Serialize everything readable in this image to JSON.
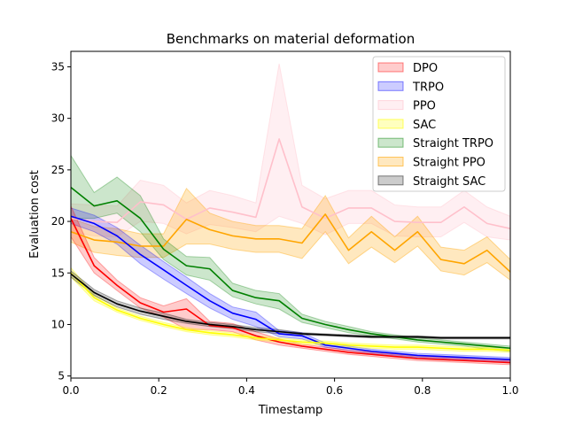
{
  "chart_data": {
    "type": "line",
    "title": "Benchmarks on material deformation",
    "xlabel": "Timestamp",
    "ylabel": "Evaluation cost",
    "xlim": [
      0,
      1
    ],
    "ylim": [
      4.8,
      36.5
    ],
    "xticks": [
      0,
      0.2,
      0.4,
      0.6,
      0.8,
      1.0
    ],
    "xtick_labels": [
      "0.0",
      "0.2",
      "0.4",
      "0.6",
      "0.8",
      "1.0"
    ],
    "yticks": [
      5,
      10,
      15,
      20,
      25,
      30,
      35
    ],
    "ytick_labels": [
      "5",
      "10",
      "15",
      "20",
      "25",
      "30",
      "35"
    ],
    "legend_position": "top-right",
    "x": [
      0,
      0.053,
      0.105,
      0.158,
      0.211,
      0.263,
      0.316,
      0.368,
      0.421,
      0.474,
      0.526,
      0.579,
      0.632,
      0.684,
      0.737,
      0.789,
      0.842,
      0.895,
      0.947,
      1.0
    ],
    "series": [
      {
        "name": "PPO",
        "color": "#ffc0cb",
        "fill": "#ffc0cb",
        "fill_opacity": 0.25,
        "values": [
          20.3,
          20.0,
          19.9,
          21.9,
          21.6,
          20.2,
          21.3,
          20.9,
          20.4,
          28.0,
          21.4,
          20.3,
          21.3,
          21.3,
          20.0,
          19.9,
          19.9,
          21.4,
          19.8,
          19.3
        ],
        "lower": [
          19.0,
          18.6,
          18.5,
          20.0,
          19.8,
          18.8,
          19.7,
          19.4,
          19.0,
          20.5,
          19.8,
          18.7,
          19.8,
          19.8,
          18.6,
          18.5,
          18.5,
          19.9,
          18.5,
          18.2
        ],
        "upper": [
          21.7,
          21.6,
          21.5,
          24.0,
          23.5,
          21.8,
          23.0,
          22.5,
          21.8,
          35.3,
          23.5,
          22.2,
          23.0,
          23.0,
          21.6,
          21.4,
          21.4,
          23.0,
          21.4,
          20.5
        ]
      },
      {
        "name": "Straight PPO",
        "color": "#ffa500",
        "fill": "#ffa500",
        "fill_opacity": 0.25,
        "values": [
          19.0,
          18.2,
          18.0,
          17.6,
          17.6,
          20.2,
          19.2,
          18.6,
          18.3,
          18.3,
          17.9,
          20.7,
          17.2,
          19.0,
          17.2,
          19.0,
          16.3,
          15.9,
          17.2,
          15.1
        ],
        "lower": [
          18.0,
          17.0,
          16.7,
          16.5,
          16.5,
          17.8,
          17.8,
          17.3,
          17.0,
          17.0,
          16.4,
          19.0,
          15.9,
          17.5,
          16.0,
          17.6,
          15.2,
          14.8,
          16.0,
          14.3
        ],
        "upper": [
          20.3,
          19.5,
          19.3,
          18.8,
          18.8,
          23.2,
          20.8,
          20.0,
          19.6,
          19.6,
          19.3,
          22.5,
          18.4,
          20.5,
          18.5,
          20.5,
          17.5,
          17.2,
          18.5,
          16.3
        ]
      },
      {
        "name": "Straight TRPO",
        "color": "#008000",
        "fill": "#008000",
        "fill_opacity": 0.2,
        "values": [
          23.3,
          21.5,
          22.0,
          20.3,
          17.3,
          15.7,
          15.4,
          13.3,
          12.6,
          12.3,
          10.6,
          10.0,
          9.5,
          9.1,
          8.8,
          8.5,
          8.3,
          8.1,
          7.9,
          7.7
        ],
        "lower": [
          20.3,
          20.3,
          20.8,
          19.0,
          16.3,
          14.8,
          14.3,
          12.7,
          12.0,
          11.5,
          10.2,
          9.7,
          9.2,
          8.9,
          8.6,
          8.3,
          8.1,
          7.9,
          7.6,
          7.4
        ],
        "upper": [
          26.4,
          22.8,
          24.3,
          22.5,
          18.3,
          16.6,
          16.5,
          14.0,
          13.3,
          13.0,
          11.0,
          10.3,
          9.8,
          9.3,
          9.0,
          8.7,
          8.5,
          8.3,
          8.1,
          7.9
        ]
      },
      {
        "name": "TRPO",
        "color": "#0000ff",
        "fill": "#0000ff",
        "fill_opacity": 0.2,
        "values": [
          20.5,
          19.8,
          18.6,
          16.8,
          15.3,
          13.8,
          12.3,
          11.1,
          10.5,
          9.1,
          8.9,
          8.0,
          7.7,
          7.4,
          7.2,
          7.0,
          6.9,
          6.8,
          6.7,
          6.6
        ],
        "lower": [
          19.8,
          19.0,
          17.8,
          15.9,
          14.4,
          13.0,
          11.6,
          10.5,
          9.8,
          8.8,
          8.6,
          7.8,
          7.5,
          7.2,
          7.0,
          6.8,
          6.7,
          6.6,
          6.5,
          6.4
        ],
        "upper": [
          21.3,
          20.6,
          19.4,
          17.7,
          16.1,
          14.6,
          13.0,
          11.7,
          11.2,
          9.4,
          9.2,
          8.2,
          7.9,
          7.6,
          7.4,
          7.2,
          7.1,
          7.0,
          6.9,
          6.8
        ]
      },
      {
        "name": "DPO",
        "color": "#ff0000",
        "fill": "#ff0000",
        "fill_opacity": 0.2,
        "values": [
          20.3,
          15.7,
          13.8,
          12.1,
          11.2,
          11.5,
          9.9,
          9.7,
          8.9,
          8.3,
          7.9,
          7.6,
          7.3,
          7.1,
          6.9,
          6.7,
          6.6,
          6.5,
          6.4,
          6.3
        ],
        "lower": [
          18.5,
          15.0,
          13.3,
          11.6,
          10.7,
          9.5,
          9.5,
          9.3,
          8.5,
          8.0,
          7.7,
          7.4,
          7.1,
          6.9,
          6.7,
          6.5,
          6.4,
          6.3,
          6.2,
          6.1
        ],
        "upper": [
          21.5,
          16.5,
          14.3,
          12.6,
          11.8,
          12.5,
          10.3,
          10.1,
          9.3,
          8.6,
          8.1,
          7.8,
          7.5,
          7.3,
          7.1,
          6.9,
          6.8,
          6.7,
          6.6,
          6.5
        ]
      },
      {
        "name": "SAC",
        "color": "#ffff00",
        "fill": "#ffff00",
        "fill_opacity": 0.25,
        "values": [
          15.0,
          12.6,
          11.4,
          10.6,
          10.0,
          9.5,
          9.2,
          9.0,
          8.7,
          8.5,
          8.3,
          8.2,
          8.0,
          7.9,
          7.8,
          7.8,
          7.7,
          7.6,
          7.6,
          7.5
        ],
        "lower": [
          14.6,
          12.3,
          11.2,
          10.4,
          9.8,
          9.3,
          9.0,
          8.8,
          8.5,
          8.3,
          8.1,
          8.0,
          7.8,
          7.7,
          7.6,
          7.6,
          7.5,
          7.4,
          7.4,
          7.3
        ],
        "upper": [
          15.5,
          12.9,
          11.6,
          10.8,
          10.2,
          9.7,
          9.4,
          9.2,
          8.9,
          8.7,
          8.5,
          8.4,
          8.2,
          8.1,
          8.0,
          8.0,
          7.9,
          7.8,
          7.8,
          7.7
        ]
      },
      {
        "name": "Straight SAC",
        "color": "#000000",
        "fill": "#000000",
        "fill_opacity": 0.2,
        "values": [
          14.9,
          13.1,
          12.0,
          11.3,
          10.8,
          10.3,
          10.0,
          9.8,
          9.5,
          9.3,
          9.1,
          9.0,
          8.9,
          8.8,
          8.8,
          8.8,
          8.7,
          8.7,
          8.7,
          8.7
        ],
        "lower": [
          14.6,
          12.8,
          11.7,
          11.0,
          10.5,
          10.1,
          9.8,
          9.6,
          9.3,
          9.1,
          9.0,
          8.9,
          8.8,
          8.7,
          8.7,
          8.7,
          8.6,
          8.6,
          8.6,
          8.6
        ],
        "upper": [
          15.2,
          13.4,
          12.3,
          11.6,
          11.1,
          10.5,
          10.2,
          10.0,
          9.7,
          9.5,
          9.2,
          9.1,
          9.0,
          8.9,
          8.9,
          8.9,
          8.8,
          8.8,
          8.8,
          8.8
        ]
      }
    ],
    "legend_order": [
      "DPO",
      "TRPO",
      "PPO",
      "SAC",
      "Straight TRPO",
      "Straight PPO",
      "Straight SAC"
    ]
  }
}
